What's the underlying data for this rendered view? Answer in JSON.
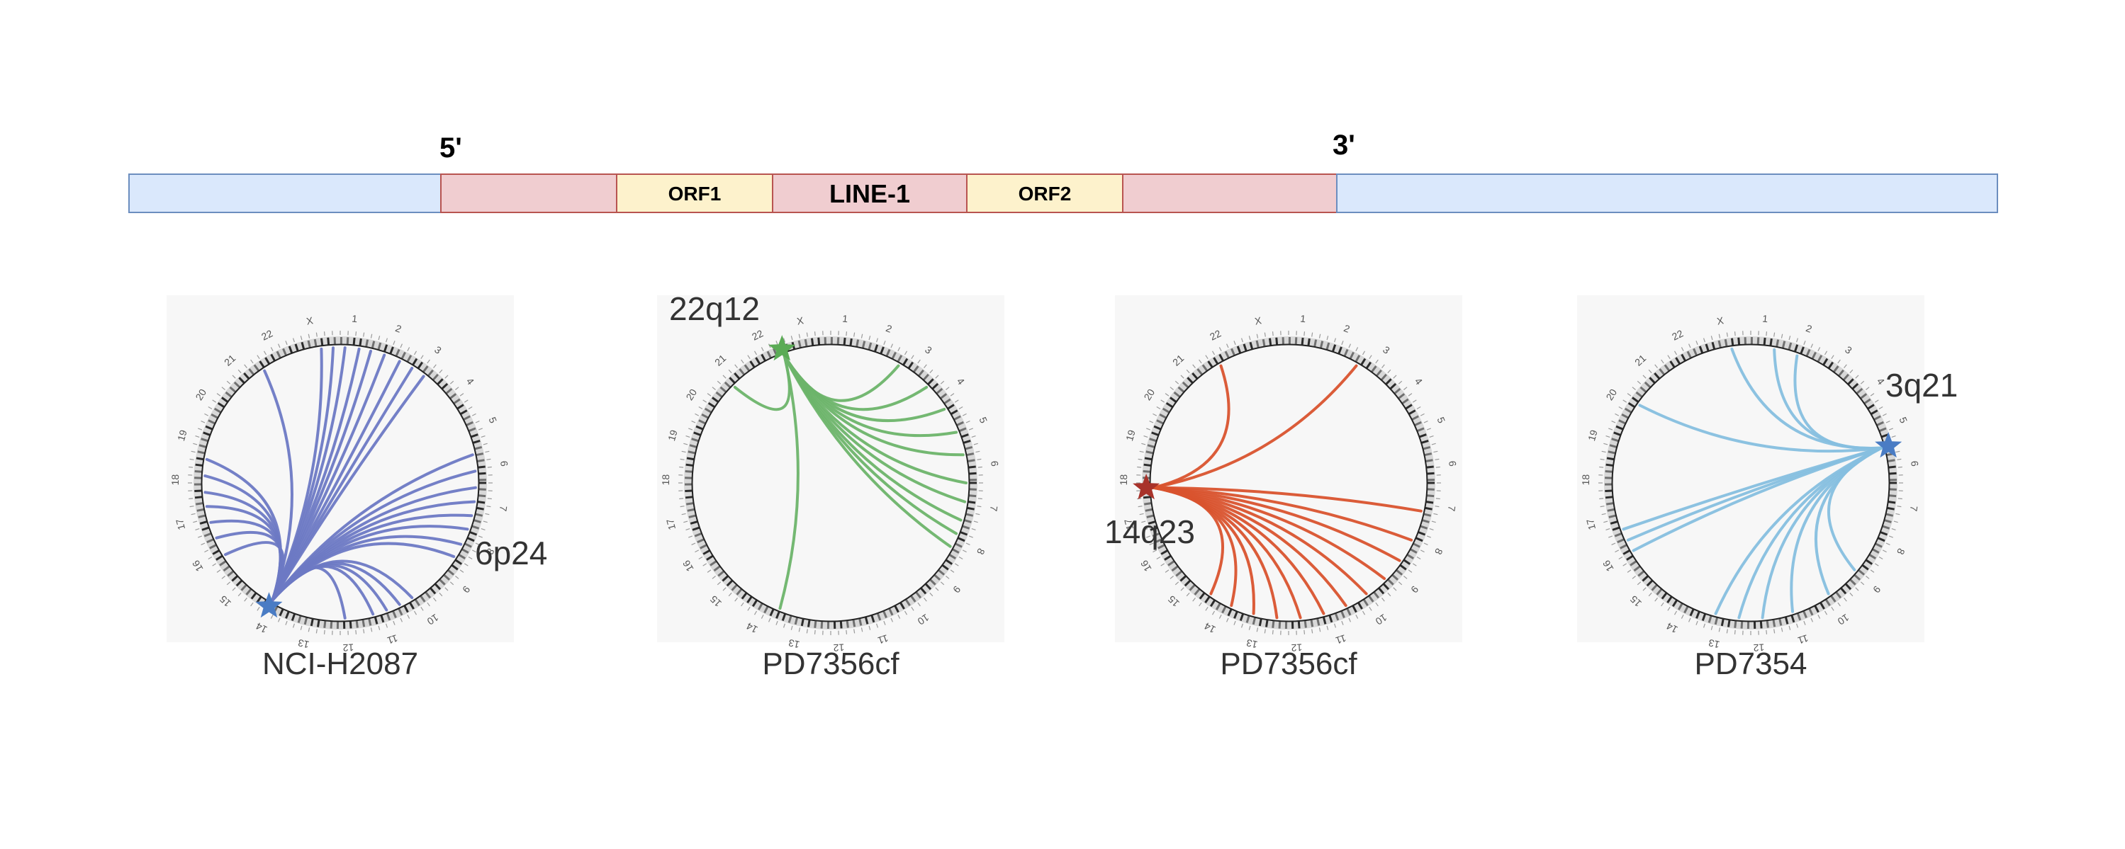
{
  "construct": {
    "five_prime": "5'",
    "three_prime": "3'",
    "segments": [
      {
        "kind": "flank",
        "label": ""
      },
      {
        "kind": "utr",
        "label": ""
      },
      {
        "kind": "orf",
        "label": "ORF1"
      },
      {
        "kind": "body",
        "label": "LINE-1"
      },
      {
        "kind": "orf",
        "label": "ORF2"
      },
      {
        "kind": "utr",
        "label": ""
      },
      {
        "kind": "flank",
        "label": ""
      }
    ]
  },
  "colors": {
    "flank": "#dae8fc",
    "flank_border": "#6c8ebf",
    "utr": "#f0cdd0",
    "utr_border": "#b85450",
    "orf": "#fdf2cc",
    "orf_border": "#b85450",
    "ring_dark": "#2b2b2b",
    "panel_bg": "#f7f7f7"
  },
  "chromosome_labels": [
    "1",
    "2",
    "3",
    "4",
    "5",
    "6",
    "7",
    "8",
    "9",
    "10",
    "11",
    "12",
    "13",
    "14",
    "15",
    "16",
    "17",
    "18",
    "19",
    "20",
    "21",
    "22",
    "X"
  ],
  "circos": [
    {
      "caption": "NCI-H2087",
      "locus": "6p24",
      "color": "#6d79c4",
      "star_color": "#4a7cc4",
      "source_angle": 120,
      "targets": [
        -12,
        -5,
        2,
        8,
        14,
        20,
        27,
        33,
        58,
        64,
        70,
        76,
        88,
        148,
        156,
        163,
        170,
        176,
        183,
        190,
        236,
        262,
        267,
        272,
        278,
        283,
        289,
        296,
        302,
        308
      ]
    },
    {
      "caption": "PD7356cf",
      "locus": "22q12",
      "color": "#6db46a",
      "star_color": "#5aab55",
      "source_angle": -110,
      "targets": [
        -135,
        -60,
        -45,
        -33,
        -22,
        -12,
        0,
        8,
        16,
        22,
        28,
        112
      ]
    },
    {
      "caption": "PD7356cf",
      "locus": "14q23",
      "color": "#d9532e",
      "star_color": "#a8322a",
      "source_angle": 178,
      "targets": [
        -120,
        -60,
        12,
        25,
        35,
        45,
        55,
        65,
        75,
        85,
        95,
        105,
        115,
        125
      ]
    },
    {
      "caption": "PD7354",
      "locus": "3q21",
      "color": "#86bfdf",
      "star_color": "#4a7cc4",
      "source_angle": -15,
      "targets": [
        -145,
        -98,
        -80,
        -70,
        40,
        55,
        72,
        85,
        95,
        105,
        150,
        155,
        160
      ]
    }
  ]
}
